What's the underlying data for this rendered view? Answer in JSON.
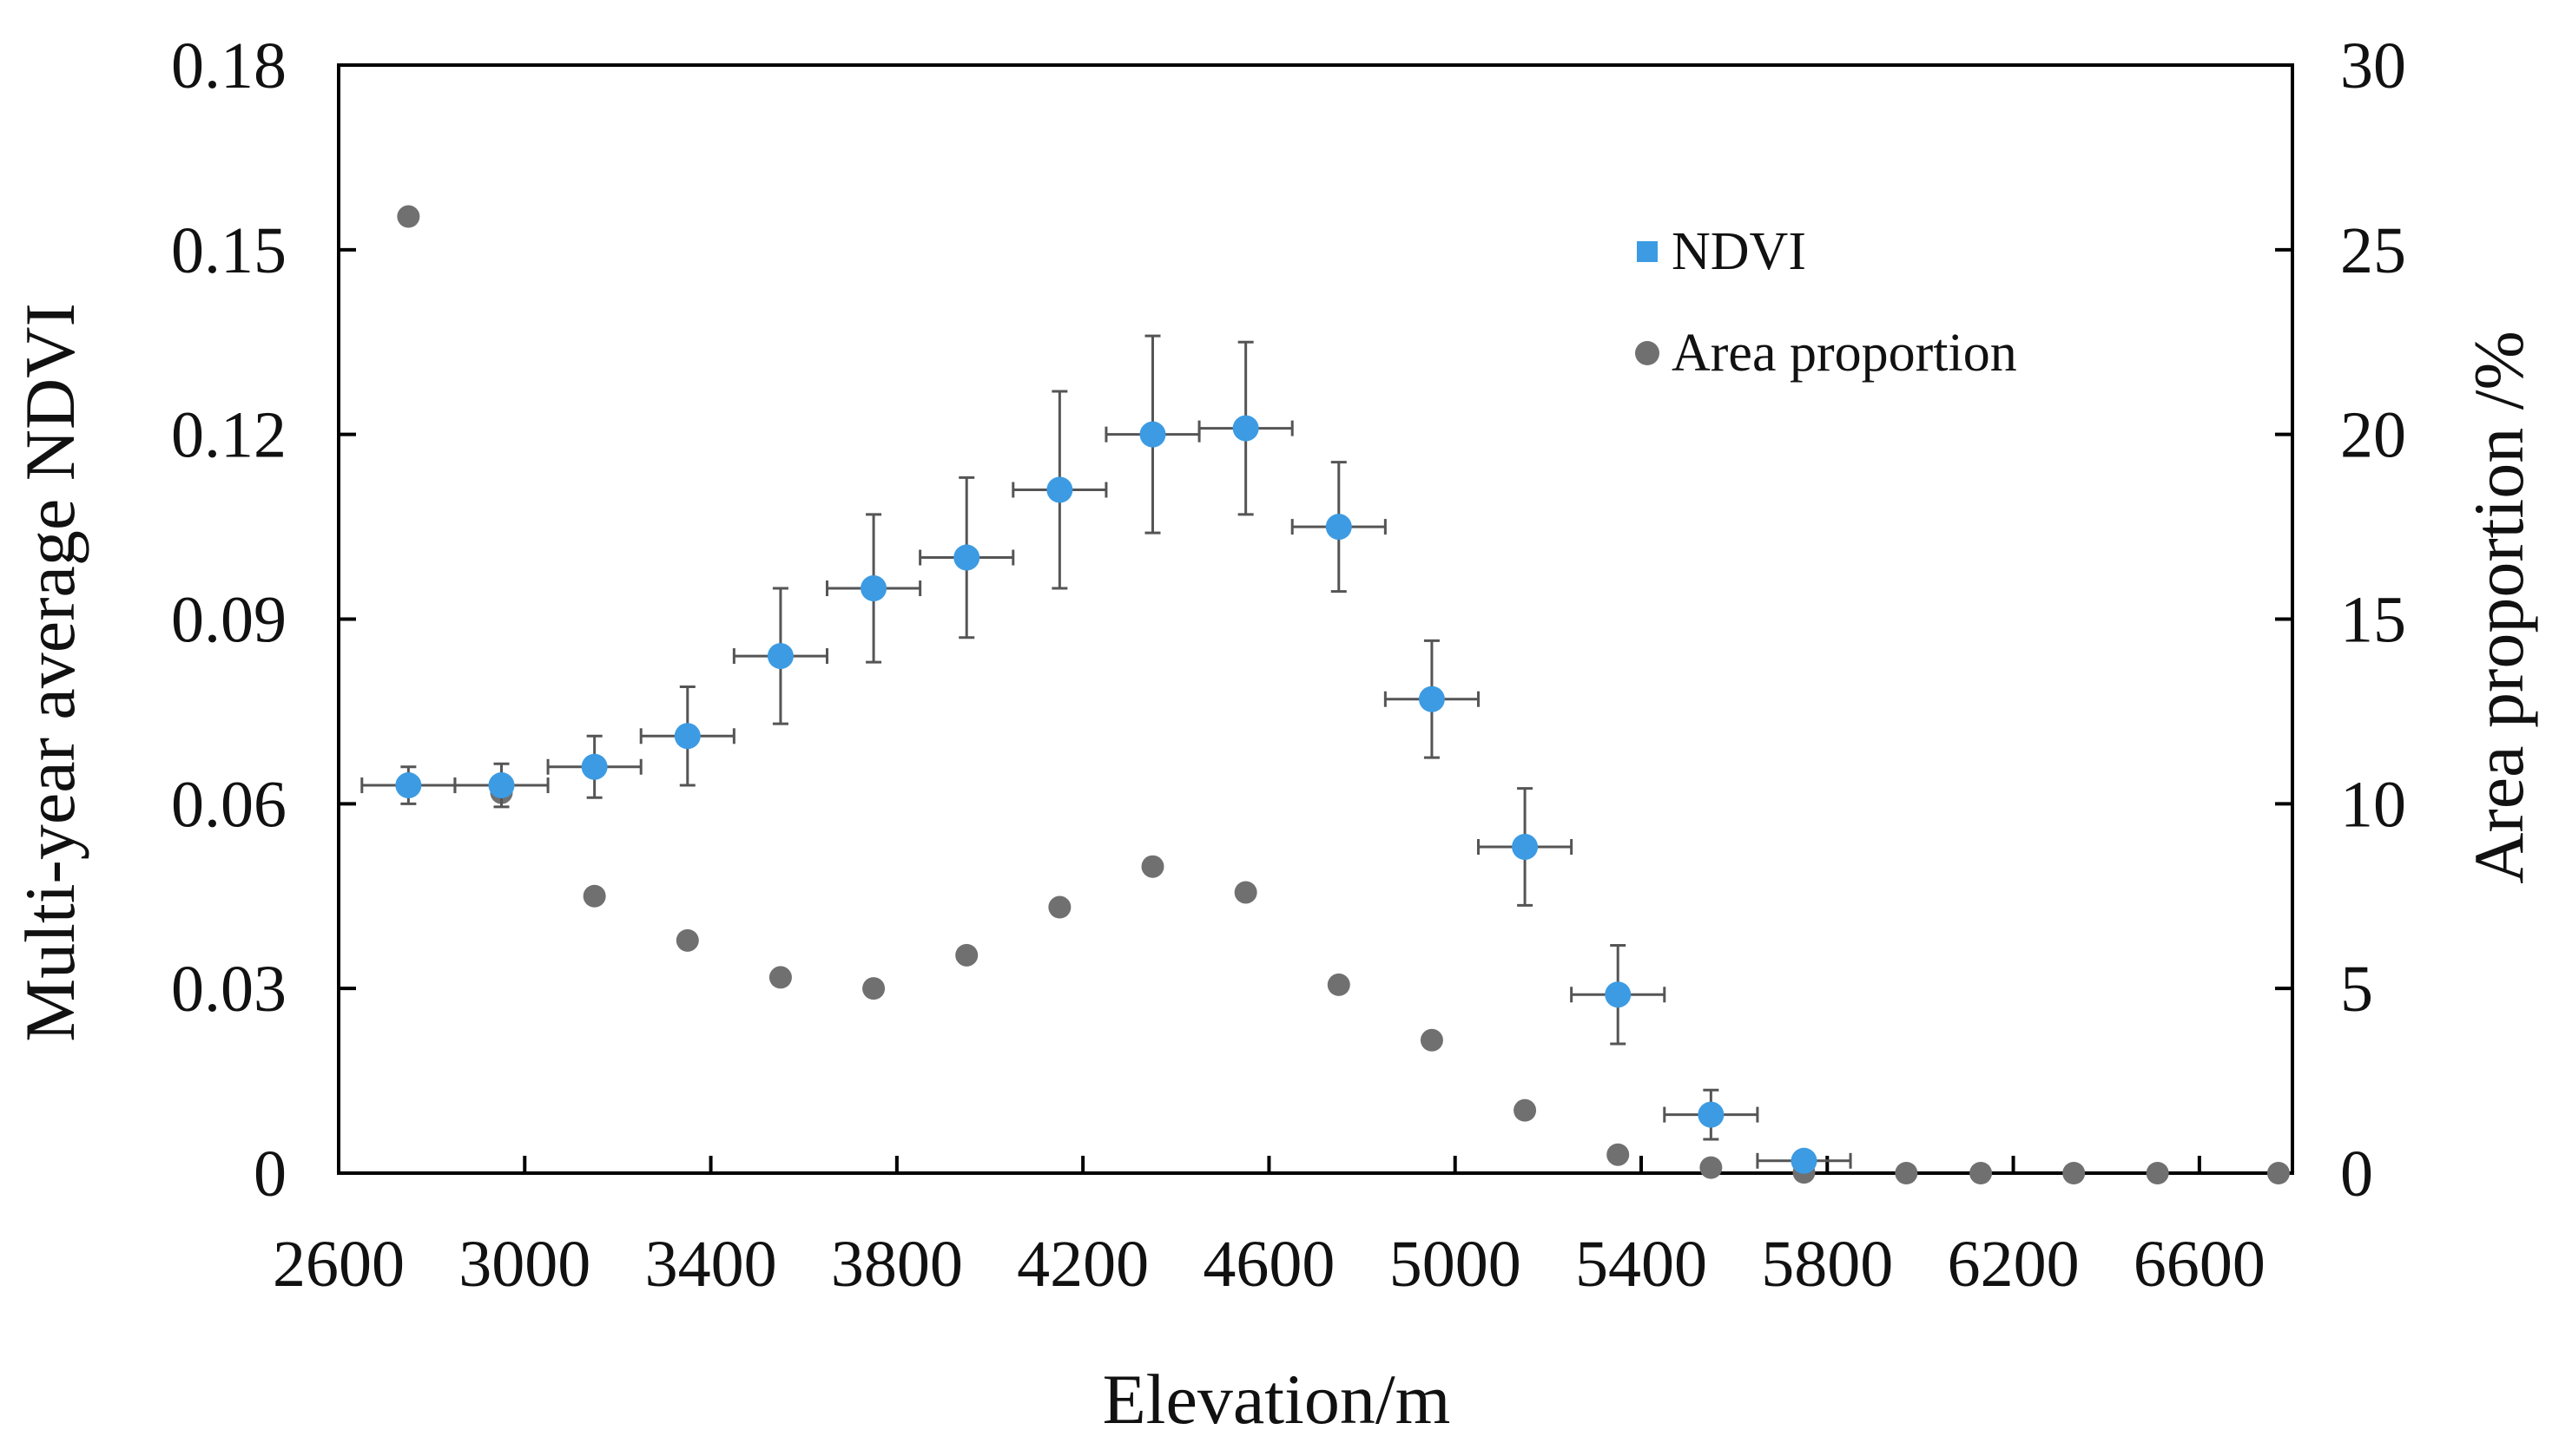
{
  "chart_data": {
    "type": "scatter",
    "title": "",
    "xlabel": "Elevation/m",
    "ylabel_left": "Multi-year average NDVI",
    "ylabel_right": "Area proportion /%",
    "xlim": [
      2600,
      6800
    ],
    "ylim_left": [
      0,
      0.18
    ],
    "ylim_right": [
      0,
      30
    ],
    "x_ticks": [
      2600,
      3000,
      3400,
      3800,
      4200,
      4600,
      5000,
      5400,
      5800,
      6200,
      6600
    ],
    "x_tick_labels": [
      "2600",
      "3000",
      "3400",
      "3800",
      "4200",
      "4600",
      "5000",
      "5400",
      "5800",
      "6200",
      "6600"
    ],
    "y_left_ticks": [
      0,
      0.03,
      0.06,
      0.09,
      0.12,
      0.15,
      0.18
    ],
    "y_left_tick_labels": [
      "0",
      "0.03",
      "0.06",
      "0.09",
      "0.12",
      "0.15",
      "0.18"
    ],
    "y_right_ticks": [
      0,
      5,
      10,
      15,
      20,
      25,
      30
    ],
    "y_right_tick_labels": [
      "0",
      "5",
      "10",
      "15",
      "20",
      "25",
      "30"
    ],
    "grid": false,
    "legend_position": "top-right",
    "series": [
      {
        "name": "NDVI",
        "axis": "left",
        "color": "#3c9be3",
        "marker": "circle",
        "points": [
          {
            "x": 2750,
            "y": 0.063,
            "yerr": 0.003,
            "xerr": 100
          },
          {
            "x": 2950,
            "y": 0.063,
            "yerr": 0.0035,
            "xerr": 100
          },
          {
            "x": 3150,
            "y": 0.066,
            "yerr": 0.005,
            "xerr": 100
          },
          {
            "x": 3350,
            "y": 0.071,
            "yerr": 0.008,
            "xerr": 100
          },
          {
            "x": 3550,
            "y": 0.084,
            "yerr": 0.011,
            "xerr": 100
          },
          {
            "x": 3750,
            "y": 0.095,
            "yerr": 0.012,
            "xerr": 100
          },
          {
            "x": 3950,
            "y": 0.1,
            "yerr": 0.013,
            "xerr": 100
          },
          {
            "x": 4150,
            "y": 0.111,
            "yerr": 0.016,
            "xerr": 100
          },
          {
            "x": 4350,
            "y": 0.12,
            "yerr": 0.016,
            "xerr": 100
          },
          {
            "x": 4550,
            "y": 0.121,
            "yerr": 0.014,
            "xerr": 100
          },
          {
            "x": 4750,
            "y": 0.105,
            "yerr": 0.0105,
            "xerr": 100
          },
          {
            "x": 4950,
            "y": 0.077,
            "yerr": 0.0095,
            "xerr": 100
          },
          {
            "x": 5150,
            "y": 0.053,
            "yerr": 0.0095,
            "xerr": 100
          },
          {
            "x": 5350,
            "y": 0.029,
            "yerr": 0.008,
            "xerr": 100
          },
          {
            "x": 5550,
            "y": 0.0095,
            "yerr": 0.004,
            "xerr": 100
          },
          {
            "x": 5750,
            "y": 0.002,
            "yerr": 0.001,
            "xerr": 100
          }
        ]
      },
      {
        "name": "Area proportion",
        "axis": "right",
        "color": "#707070",
        "marker": "circle",
        "points": [
          {
            "x": 2750,
            "y": 25.9
          },
          {
            "x": 2950,
            "y": 10.3
          },
          {
            "x": 3150,
            "y": 7.5
          },
          {
            "x": 3350,
            "y": 6.3
          },
          {
            "x": 3550,
            "y": 5.3
          },
          {
            "x": 3750,
            "y": 5.0
          },
          {
            "x": 3950,
            "y": 5.9
          },
          {
            "x": 4150,
            "y": 7.2
          },
          {
            "x": 4350,
            "y": 8.3
          },
          {
            "x": 4550,
            "y": 7.6
          },
          {
            "x": 4750,
            "y": 5.1
          },
          {
            "x": 4950,
            "y": 3.6
          },
          {
            "x": 5150,
            "y": 1.7
          },
          {
            "x": 5350,
            "y": 0.5
          },
          {
            "x": 5550,
            "y": 0.15
          },
          {
            "x": 5750,
            "y": 0.02
          },
          {
            "x": 5970,
            "y": 0.0
          },
          {
            "x": 6130,
            "y": 0.0
          },
          {
            "x": 6330,
            "y": 0.0
          },
          {
            "x": 6510,
            "y": 0.0
          },
          {
            "x": 6770,
            "y": 0.0
          }
        ]
      }
    ]
  }
}
